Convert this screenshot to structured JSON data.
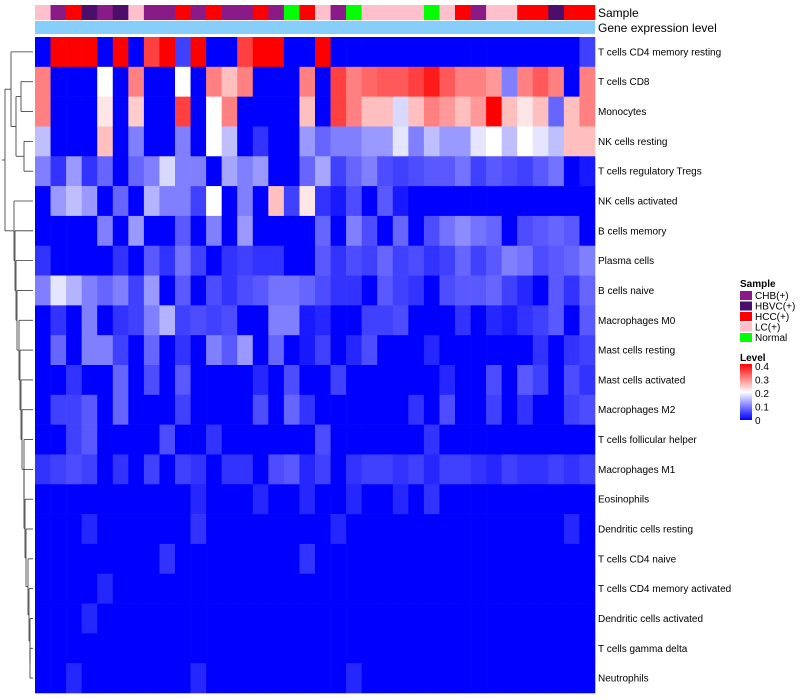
{
  "chart_data": {
    "type": "heatmap",
    "annotation_labels": [
      "Sample",
      "Gene expression level"
    ],
    "sample_annotation": [
      "LC",
      "CHB",
      "HCC",
      "HBVC",
      "CHB",
      "HBVC",
      "LC",
      "CHB",
      "CHB",
      "HCC",
      "CHB",
      "HCC",
      "CHB",
      "CHB",
      "HCC",
      "CHB",
      "Normal",
      "HCC",
      "LC",
      "CHB",
      "Normal",
      "LC",
      "LC",
      "LC",
      "LC",
      "Normal",
      "LC",
      "HCC",
      "CHB",
      "LC",
      "LC",
      "HCC",
      "HCC",
      "HBVC",
      "HCC",
      "HCC"
    ],
    "rows": [
      "T cells CD4 memory resting",
      "T cells CD8",
      "Monocytes",
      "NK cells resting",
      "T cells regulatory  Tregs",
      "NK cells activated",
      "B cells memory",
      "Plasma cells",
      "B cells naive",
      "Macrophages M0",
      "Mast cells resting",
      "Mast cells activated",
      "Macrophages M2",
      "T cells follicular helper",
      "Macrophages M1",
      "Eosinophils",
      "Dendritic cells resting",
      "T cells CD4 naive",
      "T cells CD4 memory activated",
      "Dendritic cells activated",
      "T cells gamma delta",
      "Neutrophils"
    ],
    "values": [
      [
        0.0,
        0.4,
        0.4,
        0.4,
        0.0,
        0.4,
        0.0,
        0.35,
        0.4,
        0.05,
        0.4,
        0.0,
        0.0,
        0.35,
        0.4,
        0.4,
        0.0,
        0.0,
        0.4,
        0.0,
        0.0,
        0.0,
        0.0,
        0.0,
        0.0,
        0.0,
        0.0,
        0.0,
        0.0,
        0.0,
        0.0,
        0.0,
        0.0,
        0.0,
        0.0,
        0.05
      ],
      [
        0.3,
        0.0,
        0.0,
        0.0,
        0.2,
        0.0,
        0.3,
        0.0,
        0.0,
        0.2,
        0.0,
        0.3,
        0.25,
        0.3,
        0.0,
        0.0,
        0.0,
        0.3,
        0.0,
        0.35,
        0.3,
        0.32,
        0.33,
        0.33,
        0.35,
        0.38,
        0.33,
        0.3,
        0.3,
        0.28,
        0.1,
        0.3,
        0.33,
        0.3,
        0.0,
        0.3
      ],
      [
        0.3,
        0.0,
        0.0,
        0.0,
        0.22,
        0.0,
        0.24,
        0.0,
        0.0,
        0.35,
        0.0,
        0.2,
        0.3,
        0.0,
        0.0,
        0.0,
        0.0,
        0.25,
        0.0,
        0.35,
        0.3,
        0.25,
        0.25,
        0.17,
        0.25,
        0.3,
        0.28,
        0.25,
        0.28,
        0.4,
        0.25,
        0.22,
        0.25,
        0.08,
        0.25,
        0.3
      ],
      [
        0.15,
        0.0,
        0.0,
        0.0,
        0.25,
        0.0,
        0.1,
        0.0,
        0.0,
        0.1,
        0.0,
        0.2,
        0.15,
        0.0,
        0.04,
        0.0,
        0.0,
        0.12,
        0.08,
        0.1,
        0.1,
        0.12,
        0.12,
        0.18,
        0.1,
        0.15,
        0.12,
        0.12,
        0.18,
        0.2,
        0.15,
        0.2,
        0.18,
        0.15,
        0.25,
        0.25
      ],
      [
        0.1,
        0.04,
        0.12,
        0.04,
        0.08,
        0.0,
        0.08,
        0.1,
        0.17,
        0.1,
        0.1,
        0.0,
        0.13,
        0.1,
        0.12,
        0.0,
        0.0,
        0.08,
        0.13,
        0.05,
        0.08,
        0.1,
        0.06,
        0.05,
        0.06,
        0.07,
        0.07,
        0.09,
        0.05,
        0.07,
        0.06,
        0.05,
        0.07,
        0.09,
        0.0,
        0.02
      ],
      [
        0.0,
        0.12,
        0.15,
        0.12,
        0.0,
        0.08,
        0.0,
        0.14,
        0.1,
        0.1,
        0.05,
        0.2,
        0.0,
        0.1,
        0.0,
        0.25,
        0.05,
        0.22,
        0.04,
        0.02,
        0.06,
        0.0,
        0.07,
        0.02,
        0.0,
        0.0,
        0.0,
        0.0,
        0.0,
        0.0,
        0.0,
        0.0,
        0.0,
        0.0,
        0.0,
        0.0
      ],
      [
        0.0,
        0.0,
        0.0,
        0.0,
        0.1,
        0.0,
        0.12,
        0.0,
        0.0,
        0.07,
        0.0,
        0.1,
        0.0,
        0.12,
        0.0,
        0.0,
        0.0,
        0.0,
        0.08,
        0.0,
        0.1,
        0.06,
        0.0,
        0.08,
        0.0,
        0.06,
        0.09,
        0.11,
        0.09,
        0.08,
        0.0,
        0.06,
        0.07,
        0.08,
        0.07,
        0.0
      ],
      [
        0.04,
        0.0,
        0.0,
        0.0,
        0.0,
        0.04,
        0.0,
        0.07,
        0.04,
        0.09,
        0.05,
        0.0,
        0.04,
        0.05,
        0.04,
        0.04,
        0.0,
        0.0,
        0.07,
        0.04,
        0.06,
        0.05,
        0.08,
        0.05,
        0.06,
        0.04,
        0.05,
        0.08,
        0.05,
        0.07,
        0.1,
        0.09,
        0.06,
        0.07,
        0.08,
        0.1
      ],
      [
        0.1,
        0.18,
        0.14,
        0.1,
        0.08,
        0.1,
        0.05,
        0.12,
        0.0,
        0.07,
        0.0,
        0.06,
        0.04,
        0.06,
        0.07,
        0.09,
        0.09,
        0.08,
        0.06,
        0.04,
        0.04,
        0.0,
        0.07,
        0.05,
        0.04,
        0.0,
        0.06,
        0.07,
        0.07,
        0.08,
        0.05,
        0.03,
        0.0,
        0.07,
        0.04,
        0.08
      ],
      [
        0.0,
        0.04,
        0.0,
        0.1,
        0.0,
        0.04,
        0.05,
        0.1,
        0.14,
        0.05,
        0.06,
        0.05,
        0.06,
        0.0,
        0.0,
        0.1,
        0.1,
        0.02,
        0.03,
        0.0,
        0.0,
        0.05,
        0.05,
        0.06,
        0.0,
        0.0,
        0.0,
        0.04,
        0.0,
        0.03,
        0.02,
        0.04,
        0.05,
        0.07,
        0.0,
        0.07
      ],
      [
        0.0,
        0.08,
        0.0,
        0.1,
        0.1,
        0.05,
        0.0,
        0.08,
        0.0,
        0.04,
        0.0,
        0.1,
        0.07,
        0.12,
        0.0,
        0.08,
        0.0,
        0.02,
        0.05,
        0.0,
        0.03,
        0.06,
        0.0,
        0.0,
        0.0,
        0.03,
        0.0,
        0.0,
        0.0,
        0.0,
        0.0,
        0.0,
        0.04,
        0.0,
        0.04,
        0.05
      ],
      [
        0.0,
        0.0,
        0.04,
        0.0,
        0.0,
        0.08,
        0.0,
        0.06,
        0.0,
        0.07,
        0.0,
        0.0,
        0.0,
        0.0,
        0.03,
        0.0,
        0.06,
        0.0,
        0.0,
        0.05,
        0.0,
        0.0,
        0.0,
        0.0,
        0.0,
        0.0,
        0.03,
        0.0,
        0.0,
        0.06,
        0.0,
        0.07,
        0.05,
        0.0,
        0.06,
        0.04
      ],
      [
        0.0,
        0.05,
        0.05,
        0.07,
        0.0,
        0.08,
        0.0,
        0.0,
        0.0,
        0.05,
        0.0,
        0.0,
        0.0,
        0.0,
        0.06,
        0.0,
        0.08,
        0.04,
        0.0,
        0.0,
        0.0,
        0.0,
        0.0,
        0.0,
        0.04,
        0.0,
        0.06,
        0.0,
        0.0,
        0.05,
        0.0,
        0.04,
        0.0,
        0.0,
        0.05,
        0.06
      ],
      [
        0.0,
        0.0,
        0.05,
        0.07,
        0.0,
        0.0,
        0.0,
        0.0,
        0.06,
        0.0,
        0.0,
        0.04,
        0.0,
        0.0,
        0.0,
        0.0,
        0.0,
        0.0,
        0.06,
        0.0,
        0.0,
        0.0,
        0.0,
        0.0,
        0.0,
        0.04,
        0.0,
        0.0,
        0.0,
        0.0,
        0.0,
        0.0,
        0.0,
        0.0,
        0.0,
        0.0
      ],
      [
        0.04,
        0.05,
        0.06,
        0.05,
        0.0,
        0.04,
        0.0,
        0.05,
        0.0,
        0.05,
        0.04,
        0.0,
        0.04,
        0.04,
        0.0,
        0.06,
        0.07,
        0.03,
        0.05,
        0.0,
        0.04,
        0.05,
        0.05,
        0.04,
        0.05,
        0.03,
        0.05,
        0.05,
        0.04,
        0.03,
        0.05,
        0.04,
        0.04,
        0.05,
        0.04,
        0.05
      ],
      [
        0.0,
        0.0,
        0.0,
        0.0,
        0.0,
        0.0,
        0.0,
        0.0,
        0.0,
        0.0,
        0.03,
        0.0,
        0.0,
        0.0,
        0.03,
        0.0,
        0.0,
        0.03,
        0.0,
        0.0,
        0.03,
        0.0,
        0.0,
        0.03,
        0.0,
        0.04,
        0.0,
        0.0,
        0.0,
        0.0,
        0.0,
        0.0,
        0.0,
        0.0,
        0.0,
        0.0
      ],
      [
        0.0,
        0.0,
        0.0,
        0.03,
        0.0,
        0.0,
        0.0,
        0.0,
        0.0,
        0.0,
        0.04,
        0.0,
        0.0,
        0.0,
        0.0,
        0.0,
        0.0,
        0.0,
        0.0,
        0.03,
        0.0,
        0.0,
        0.0,
        0.0,
        0.0,
        0.0,
        0.0,
        0.0,
        0.0,
        0.0,
        0.0,
        0.0,
        0.0,
        0.0,
        0.03,
        0.0
      ],
      [
        0.0,
        0.0,
        0.0,
        0.0,
        0.0,
        0.0,
        0.0,
        0.0,
        0.04,
        0.0,
        0.0,
        0.0,
        0.0,
        0.0,
        0.0,
        0.0,
        0.0,
        0.04,
        0.0,
        0.0,
        0.0,
        0.0,
        0.0,
        0.0,
        0.0,
        0.0,
        0.0,
        0.0,
        0.0,
        0.0,
        0.0,
        0.0,
        0.0,
        0.0,
        0.0,
        0.0
      ],
      [
        0.0,
        0.0,
        0.0,
        0.0,
        0.03,
        0.0,
        0.0,
        0.0,
        0.0,
        0.0,
        0.0,
        0.0,
        0.0,
        0.0,
        0.0,
        0.0,
        0.0,
        0.0,
        0.0,
        0.0,
        0.0,
        0.0,
        0.0,
        0.0,
        0.0,
        0.0,
        0.0,
        0.0,
        0.0,
        0.0,
        0.0,
        0.0,
        0.0,
        0.0,
        0.0,
        0.0
      ],
      [
        0.0,
        0.0,
        0.0,
        0.03,
        0.0,
        0.0,
        0.0,
        0.0,
        0.0,
        0.0,
        0.0,
        0.0,
        0.0,
        0.0,
        0.0,
        0.0,
        0.0,
        0.0,
        0.0,
        0.0,
        0.0,
        0.0,
        0.0,
        0.0,
        0.0,
        0.0,
        0.0,
        0.0,
        0.0,
        0.0,
        0.0,
        0.0,
        0.0,
        0.0,
        0.0,
        0.0
      ],
      [
        0.0,
        0.0,
        0.0,
        0.0,
        0.0,
        0.0,
        0.0,
        0.0,
        0.0,
        0.0,
        0.0,
        0.0,
        0.0,
        0.0,
        0.0,
        0.0,
        0.0,
        0.0,
        0.0,
        0.0,
        0.0,
        0.0,
        0.0,
        0.0,
        0.0,
        0.0,
        0.0,
        0.0,
        0.0,
        0.0,
        0.0,
        0.0,
        0.0,
        0.0,
        0.0,
        0.0
      ],
      [
        0.0,
        0.0,
        0.03,
        0.0,
        0.0,
        0.0,
        0.0,
        0.0,
        0.0,
        0.0,
        0.03,
        0.0,
        0.0,
        0.0,
        0.0,
        0.0,
        0.0,
        0.0,
        0.0,
        0.0,
        0.03,
        0.0,
        0.0,
        0.0,
        0.0,
        0.0,
        0.0,
        0.0,
        0.0,
        0.0,
        0.0,
        0.0,
        0.0,
        0.0,
        0.0,
        0.0
      ]
    ],
    "sample_legend": {
      "title": "Sample",
      "entries": [
        {
          "key": "CHB",
          "label": "CHB(+)",
          "color": "#8b1a89"
        },
        {
          "key": "HBVC",
          "label": "HBVC(+)",
          "color": "#4b0f6b"
        },
        {
          "key": "HCC",
          "label": "HCC(+)",
          "color": "#ff0000"
        },
        {
          "key": "LC",
          "label": "LC(+)",
          "color": "#ffc0cb"
        },
        {
          "key": "Normal",
          "label": "Normal",
          "color": "#00ff00"
        }
      ]
    },
    "level_legend": {
      "title": "Level",
      "ticks": [
        "0.4",
        "0.3",
        "0.2",
        "0.1",
        "0"
      ],
      "range": [
        0,
        0.4
      ]
    },
    "color_scale": {
      "low": "#0000ff",
      "mid": "#ffffff",
      "high": "#ff0000",
      "mid_value": 0.2
    },
    "gene_expression_color": "#87cefa"
  }
}
